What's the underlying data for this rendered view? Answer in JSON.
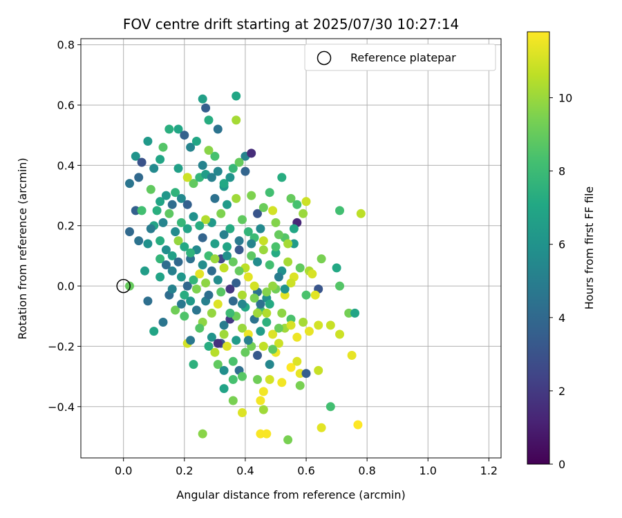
{
  "chart_data": {
    "type": "scatter",
    "title": "FOV centre drift starting at 2025/07/30 10:27:14",
    "xlabel": "Angular distance from reference (arcmin)",
    "ylabel": "Rotation from reference (arcmin)",
    "xlim": [
      -0.14,
      1.24
    ],
    "ylim": [
      -0.57,
      0.82
    ],
    "xticks": [
      0.0,
      0.2,
      0.4,
      0.6,
      0.8,
      1.0,
      1.2
    ],
    "xtick_labels": [
      "0.0",
      "0.2",
      "0.4",
      "0.6",
      "0.8",
      "1.0",
      "1.2"
    ],
    "yticks": [
      -0.4,
      -0.2,
      0.0,
      0.2,
      0.4,
      0.6,
      0.8
    ],
    "ytick_labels": [
      "−0.4",
      "−0.2",
      "0.0",
      "0.2",
      "0.4",
      "0.6",
      "0.8"
    ],
    "grid": true,
    "legend": {
      "placement": "top-right",
      "entries": [
        "Reference platepar"
      ]
    },
    "reference_point": {
      "x": 0.0,
      "y": 0.0,
      "marker": "open circle"
    },
    "colorbar": {
      "label": "Hours from first FF file",
      "colormap": "viridis",
      "range": [
        0,
        11.8
      ],
      "ticks": [
        0,
        2,
        4,
        6,
        8,
        10
      ],
      "tick_labels": [
        "0",
        "2",
        "4",
        "6",
        "8",
        "10"
      ]
    },
    "points": [
      [
        0.02,
        0.34,
        4.6
      ],
      [
        0.04,
        0.43,
        6.0
      ],
      [
        0.06,
        0.41,
        3.0
      ],
      [
        0.05,
        0.36,
        4.0
      ],
      [
        0.08,
        0.48,
        6.3
      ],
      [
        0.1,
        0.39,
        5.5
      ],
      [
        0.12,
        0.42,
        6.9
      ],
      [
        0.13,
        0.46,
        8.6
      ],
      [
        0.15,
        0.52,
        7.4
      ],
      [
        0.18,
        0.52,
        7.0
      ],
      [
        0.2,
        0.5,
        3.7
      ],
      [
        0.22,
        0.46,
        5.3
      ],
      [
        0.24,
        0.48,
        7.0
      ],
      [
        0.26,
        0.62,
        6.6
      ],
      [
        0.27,
        0.59,
        3.5
      ],
      [
        0.28,
        0.55,
        7.3
      ],
      [
        0.31,
        0.52,
        4.5
      ],
      [
        0.37,
        0.63,
        7.0
      ],
      [
        0.37,
        0.55,
        10.2
      ],
      [
        0.4,
        0.43,
        5.3
      ],
      [
        0.42,
        0.44,
        1.5
      ],
      [
        0.36,
        0.39,
        7.8
      ],
      [
        0.33,
        0.33,
        6.2
      ],
      [
        0.3,
        0.43,
        8.3
      ],
      [
        0.28,
        0.45,
        9.7
      ],
      [
        0.04,
        0.25,
        3.6
      ],
      [
        0.06,
        0.25,
        8.2
      ],
      [
        0.09,
        0.32,
        8.9
      ],
      [
        0.12,
        0.28,
        6.9
      ],
      [
        0.14,
        0.3,
        6.2
      ],
      [
        0.16,
        0.27,
        4.2
      ],
      [
        0.17,
        0.31,
        7.6
      ],
      [
        0.19,
        0.29,
        5.5
      ],
      [
        0.21,
        0.27,
        3.6
      ],
      [
        0.23,
        0.34,
        8.9
      ],
      [
        0.25,
        0.36,
        7.7
      ],
      [
        0.27,
        0.37,
        6.5
      ],
      [
        0.29,
        0.36,
        5.1
      ],
      [
        0.31,
        0.38,
        5.4
      ],
      [
        0.33,
        0.34,
        7.1
      ],
      [
        0.35,
        0.36,
        6.0
      ],
      [
        0.38,
        0.41,
        9.0
      ],
      [
        0.4,
        0.38,
        3.8
      ],
      [
        0.42,
        0.3,
        9.5
      ],
      [
        0.44,
        0.24,
        3.1
      ],
      [
        0.48,
        0.31,
        8.2
      ],
      [
        0.52,
        0.36,
        7.3
      ],
      [
        0.55,
        0.29,
        9.0
      ],
      [
        0.57,
        0.27,
        8.3
      ],
      [
        0.6,
        0.28,
        10.9
      ],
      [
        0.59,
        0.24,
        10.0
      ],
      [
        0.57,
        0.21,
        1.3
      ],
      [
        0.56,
        0.19,
        7.0
      ],
      [
        0.56,
        0.14,
        6.4
      ],
      [
        0.53,
        0.16,
        8.6
      ],
      [
        0.5,
        0.21,
        9.6
      ],
      [
        0.49,
        0.25,
        11.0
      ],
      [
        0.46,
        0.26,
        9.1
      ],
      [
        0.45,
        0.19,
        5.5
      ],
      [
        0.43,
        0.16,
        8.0
      ],
      [
        0.02,
        0.18,
        4.0
      ],
      [
        0.05,
        0.15,
        4.5
      ],
      [
        0.08,
        0.14,
        5.9
      ],
      [
        0.1,
        0.2,
        6.8
      ],
      [
        0.12,
        0.15,
        7.3
      ],
      [
        0.14,
        0.12,
        5.8
      ],
      [
        0.16,
        0.1,
        6.6
      ],
      [
        0.18,
        0.15,
        9.9
      ],
      [
        0.2,
        0.13,
        7.1
      ],
      [
        0.22,
        0.09,
        4.4
      ],
      [
        0.24,
        0.12,
        5.5
      ],
      [
        0.26,
        0.16,
        3.8
      ],
      [
        0.28,
        0.1,
        8.1
      ],
      [
        0.3,
        0.14,
        6.6
      ],
      [
        0.32,
        0.09,
        2.5
      ],
      [
        0.34,
        0.13,
        6.9
      ],
      [
        0.36,
        0.08,
        9.0
      ],
      [
        0.38,
        0.12,
        3.3
      ],
      [
        0.4,
        0.06,
        10.6
      ],
      [
        0.42,
        0.1,
        8.8
      ],
      [
        0.44,
        0.08,
        5.7
      ],
      [
        0.46,
        0.12,
        10.0
      ],
      [
        0.48,
        0.07,
        8.2
      ],
      [
        0.5,
        0.11,
        7.2
      ],
      [
        0.52,
        0.05,
        5.9
      ],
      [
        0.54,
        0.08,
        10.2
      ],
      [
        0.56,
        0.03,
        11.2
      ],
      [
        0.58,
        0.06,
        8.9
      ],
      [
        0.61,
        0.05,
        10.3
      ],
      [
        0.62,
        0.04,
        11.1
      ],
      [
        0.65,
        0.09,
        9.4
      ],
      [
        0.7,
        0.06,
        7.1
      ],
      [
        0.71,
        0.0,
        8.6
      ],
      [
        0.64,
        -0.01,
        3.1
      ],
      [
        0.63,
        -0.03,
        11.3
      ],
      [
        0.6,
        -0.03,
        8.4
      ],
      [
        0.53,
        -0.03,
        11.3
      ],
      [
        0.5,
        -0.01,
        9.2
      ],
      [
        0.47,
        -0.04,
        5.9
      ],
      [
        0.44,
        -0.02,
        4.5
      ],
      [
        0.02,
        0.0,
        9.0
      ],
      [
        0.07,
        0.05,
        6.5
      ],
      [
        0.08,
        -0.05,
        4.3
      ],
      [
        0.1,
        -0.15,
        6.9
      ],
      [
        0.13,
        -0.12,
        4.6
      ],
      [
        0.15,
        -0.03,
        4.2
      ],
      [
        0.17,
        -0.08,
        9.2
      ],
      [
        0.19,
        -0.06,
        4.7
      ],
      [
        0.2,
        -0.1,
        8.5
      ],
      [
        0.22,
        -0.05,
        6.3
      ],
      [
        0.24,
        -0.08,
        4.6
      ],
      [
        0.26,
        -0.12,
        9.8
      ],
      [
        0.27,
        -0.05,
        5.1
      ],
      [
        0.29,
        -0.09,
        9.9
      ],
      [
        0.31,
        -0.06,
        11.2
      ],
      [
        0.33,
        -0.13,
        4.9
      ],
      [
        0.35,
        -0.11,
        2.0
      ],
      [
        0.37,
        -0.1,
        9.1
      ],
      [
        0.39,
        -0.14,
        10.0
      ],
      [
        0.41,
        -0.16,
        11.5
      ],
      [
        0.43,
        -0.11,
        4.5
      ],
      [
        0.45,
        -0.08,
        8.0
      ],
      [
        0.47,
        -0.12,
        7.5
      ],
      [
        0.49,
        -0.16,
        11.2
      ],
      [
        0.51,
        -0.19,
        10.9
      ],
      [
        0.53,
        -0.14,
        10.1
      ],
      [
        0.55,
        -0.11,
        8.4
      ],
      [
        0.57,
        -0.17,
        11.5
      ],
      [
        0.59,
        -0.12,
        10.2
      ],
      [
        0.61,
        -0.15,
        11.4
      ],
      [
        0.64,
        -0.13,
        11.0
      ],
      [
        0.68,
        -0.13,
        10.8
      ],
      [
        0.71,
        -0.16,
        10.9
      ],
      [
        0.74,
        -0.09,
        9.3
      ],
      [
        0.76,
        -0.09,
        6.9
      ],
      [
        0.75,
        -0.23,
        11.4
      ],
      [
        0.21,
        -0.19,
        11.0
      ],
      [
        0.22,
        -0.18,
        4.7
      ],
      [
        0.28,
        -0.2,
        7.3
      ],
      [
        0.3,
        -0.22,
        10.5
      ],
      [
        0.32,
        -0.19,
        3.1
      ],
      [
        0.34,
        -0.2,
        11.2
      ],
      [
        0.36,
        -0.25,
        8.4
      ],
      [
        0.38,
        -0.28,
        4.3
      ],
      [
        0.4,
        -0.22,
        9.0
      ],
      [
        0.42,
        -0.2,
        9.3
      ],
      [
        0.44,
        -0.23,
        3.3
      ],
      [
        0.46,
        -0.2,
        10.7
      ],
      [
        0.48,
        -0.26,
        5.4
      ],
      [
        0.5,
        -0.22,
        11.5
      ],
      [
        0.52,
        -0.32,
        11.6
      ],
      [
        0.55,
        -0.27,
        11.8
      ],
      [
        0.57,
        -0.25,
        11.2
      ],
      [
        0.58,
        -0.29,
        11.4
      ],
      [
        0.6,
        -0.29,
        3.5
      ],
      [
        0.58,
        -0.33,
        9.4
      ],
      [
        0.64,
        -0.28,
        10.8
      ],
      [
        0.23,
        -0.26,
        7.5
      ],
      [
        0.31,
        -0.26,
        8.9
      ],
      [
        0.33,
        -0.28,
        5.8
      ],
      [
        0.36,
        -0.31,
        8.3
      ],
      [
        0.39,
        -0.3,
        8.7
      ],
      [
        0.44,
        -0.31,
        9.2
      ],
      [
        0.46,
        -0.35,
        11.6
      ],
      [
        0.48,
        -0.31,
        11.0
      ],
      [
        0.33,
        -0.34,
        6.8
      ],
      [
        0.36,
        -0.38,
        9.4
      ],
      [
        0.39,
        -0.42,
        11.2
      ],
      [
        0.45,
        -0.38,
        11.6
      ],
      [
        0.46,
        -0.41,
        10.1
      ],
      [
        0.26,
        -0.49,
        9.7
      ],
      [
        0.45,
        -0.49,
        11.7
      ],
      [
        0.47,
        -0.49,
        11.7
      ],
      [
        0.54,
        -0.51,
        9.4
      ],
      [
        0.65,
        -0.47,
        11.3
      ],
      [
        0.68,
        -0.4,
        8.2
      ],
      [
        0.77,
        -0.46,
        11.8
      ],
      [
        0.71,
        0.25,
        8.2
      ],
      [
        0.78,
        0.24,
        10.6
      ],
      [
        0.51,
        0.17,
        9.0
      ],
      [
        0.18,
        0.39,
        6.6
      ],
      [
        0.21,
        0.36,
        10.9
      ],
      [
        0.26,
        0.4,
        5.2
      ],
      [
        0.3,
        0.29,
        4.4
      ],
      [
        0.32,
        0.24,
        9.5
      ],
      [
        0.34,
        0.27,
        6.4
      ],
      [
        0.37,
        0.29,
        10.1
      ],
      [
        0.39,
        0.22,
        8.9
      ],
      [
        0.41,
        0.18,
        7.7
      ],
      [
        0.38,
        0.15,
        4.8
      ],
      [
        0.35,
        0.19,
        7.2
      ],
      [
        0.33,
        0.17,
        5.1
      ],
      [
        0.29,
        0.21,
        6.3
      ],
      [
        0.27,
        0.22,
        10.4
      ],
      [
        0.25,
        0.2,
        7.3
      ],
      [
        0.23,
        0.23,
        5.9
      ],
      [
        0.21,
        0.19,
        6.8
      ],
      [
        0.19,
        0.21,
        7.8
      ],
      [
        0.17,
        0.18,
        5.6
      ],
      [
        0.15,
        0.24,
        8.8
      ],
      [
        0.13,
        0.21,
        5.3
      ],
      [
        0.11,
        0.25,
        7.4
      ],
      [
        0.09,
        0.19,
        4.9
      ],
      [
        0.12,
        0.09,
        7.7
      ],
      [
        0.16,
        0.05,
        5.1
      ],
      [
        0.19,
        0.03,
        6.2
      ],
      [
        0.21,
        0.0,
        3.9
      ],
      [
        0.23,
        0.02,
        7.7
      ],
      [
        0.25,
        0.04,
        11.3
      ],
      [
        0.27,
        0.01,
        9.8
      ],
      [
        0.29,
        0.05,
        4.2
      ],
      [
        0.31,
        0.02,
        5.7
      ],
      [
        0.33,
        0.06,
        10.7
      ],
      [
        0.35,
        -0.01,
        1.9
      ],
      [
        0.37,
        0.01,
        3.6
      ],
      [
        0.39,
        -0.03,
        10.3
      ],
      [
        0.41,
        0.03,
        11.3
      ],
      [
        0.43,
        0.0,
        11.0
      ],
      [
        0.45,
        -0.06,
        4.4
      ],
      [
        0.47,
        -0.02,
        9.6
      ],
      [
        0.49,
        0.0,
        9.9
      ],
      [
        0.51,
        0.03,
        4.9
      ],
      [
        0.53,
        -0.01,
        6.0
      ],
      [
        0.55,
        0.01,
        10.9
      ],
      [
        0.14,
        0.07,
        4.2
      ],
      [
        0.18,
        0.08,
        4.0
      ],
      [
        0.22,
        0.11,
        7.6
      ],
      [
        0.26,
        0.07,
        5.7
      ],
      [
        0.3,
        0.09,
        10.0
      ],
      [
        0.34,
        0.1,
        5.9
      ],
      [
        0.38,
        0.05,
        9.0
      ],
      [
        0.42,
        0.14,
        5.3
      ],
      [
        0.46,
        0.15,
        10.8
      ],
      [
        0.5,
        0.13,
        8.4
      ],
      [
        0.54,
        0.14,
        10.2
      ],
      [
        0.12,
        0.03,
        6.8
      ],
      [
        0.16,
        -0.01,
        5.2
      ],
      [
        0.2,
        -0.03,
        7.3
      ],
      [
        0.24,
        -0.01,
        9.5
      ],
      [
        0.28,
        -0.03,
        4.3
      ],
      [
        0.32,
        -0.02,
        8.7
      ],
      [
        0.36,
        -0.05,
        4.0
      ],
      [
        0.4,
        -0.07,
        7.1
      ],
      [
        0.44,
        -0.09,
        10.1
      ],
      [
        0.48,
        -0.06,
        7.2
      ],
      [
        0.52,
        -0.09,
        9.8
      ],
      [
        0.25,
        -0.14,
        8.6
      ],
      [
        0.29,
        -0.17,
        6.0
      ],
      [
        0.33,
        -0.16,
        10.1
      ],
      [
        0.37,
        -0.18,
        6.4
      ],
      [
        0.41,
        -0.18,
        5.1
      ],
      [
        0.45,
        -0.15,
        6.5
      ],
      [
        0.49,
        -0.21,
        8.8
      ],
      [
        0.31,
        -0.19,
        1.7
      ],
      [
        0.35,
        -0.09,
        8.0
      ],
      [
        0.39,
        -0.06,
        5.4
      ],
      [
        0.43,
        -0.04,
        9.4
      ],
      [
        0.47,
        -0.09,
        10.4
      ],
      [
        0.51,
        -0.14,
        9.1
      ],
      [
        0.55,
        -0.13,
        11.1
      ]
    ]
  }
}
